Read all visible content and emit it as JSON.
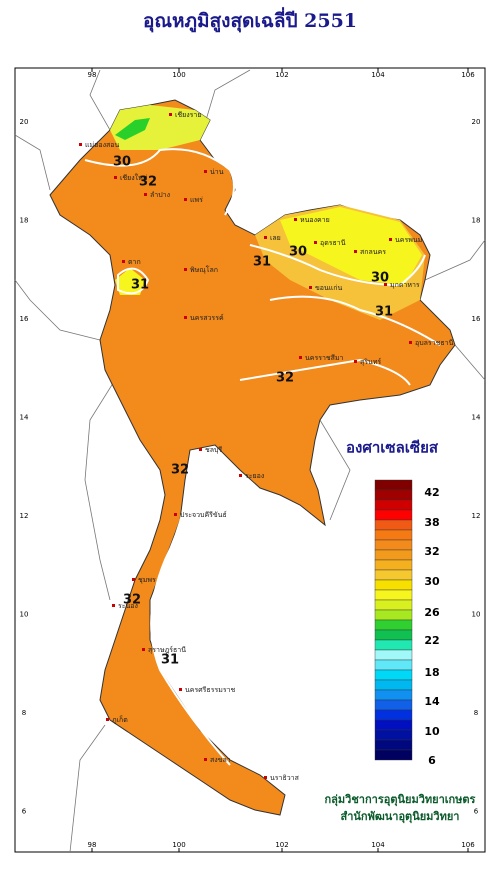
{
  "title": "อุณหภูมิสูงสุดเฉลี่ปี  2551",
  "axes": {
    "lon_ticks": [
      "98",
      "100",
      "102",
      "104",
      "106"
    ],
    "lat_ticks": [
      "20",
      "18",
      "16",
      "14",
      "12",
      "10",
      "8",
      "6"
    ]
  },
  "legend": {
    "title": "องศาเซลเซียส",
    "labels": [
      "42",
      "38",
      "32",
      "30",
      "26",
      "22",
      "18",
      "14",
      "10",
      "6"
    ]
  },
  "contour_labels": [
    "30",
    "32",
    "31",
    "30",
    "30",
    "31",
    "31",
    "32",
    "32",
    "32",
    "31"
  ],
  "provinces": [
    "เชียงราย",
    "เชียงใหม่",
    "น่าน",
    "แม่ฮ่องสอน",
    "ลำปาง",
    "แพร่",
    "หนองคาย",
    "อุดรธานี",
    "สกลนคร",
    "นครพนม",
    "เลย",
    "ขอนแก่น",
    "มุกดาหาร",
    "พิษณุโลก",
    "ตาก",
    "นครสวรรค์",
    "อุบลราชธานี",
    "สุรินทร์",
    "นครราชสีมา",
    "ชลบุรี",
    "ระยอง",
    "ประจวบคีรีขันธ์",
    "ชุมพร",
    "ระนอง",
    "สุราษฎร์ธานี",
    "นครศรีธรรมราช",
    "ภูเก็ต",
    "สงขลา",
    "นราธิวาส"
  ],
  "footer": [
    "กลุ่มวิชาการอุตุนิยมวิทยาเกษตร",
    "สำนักพัฒนาอุตุนิยมวิทยา"
  ]
}
